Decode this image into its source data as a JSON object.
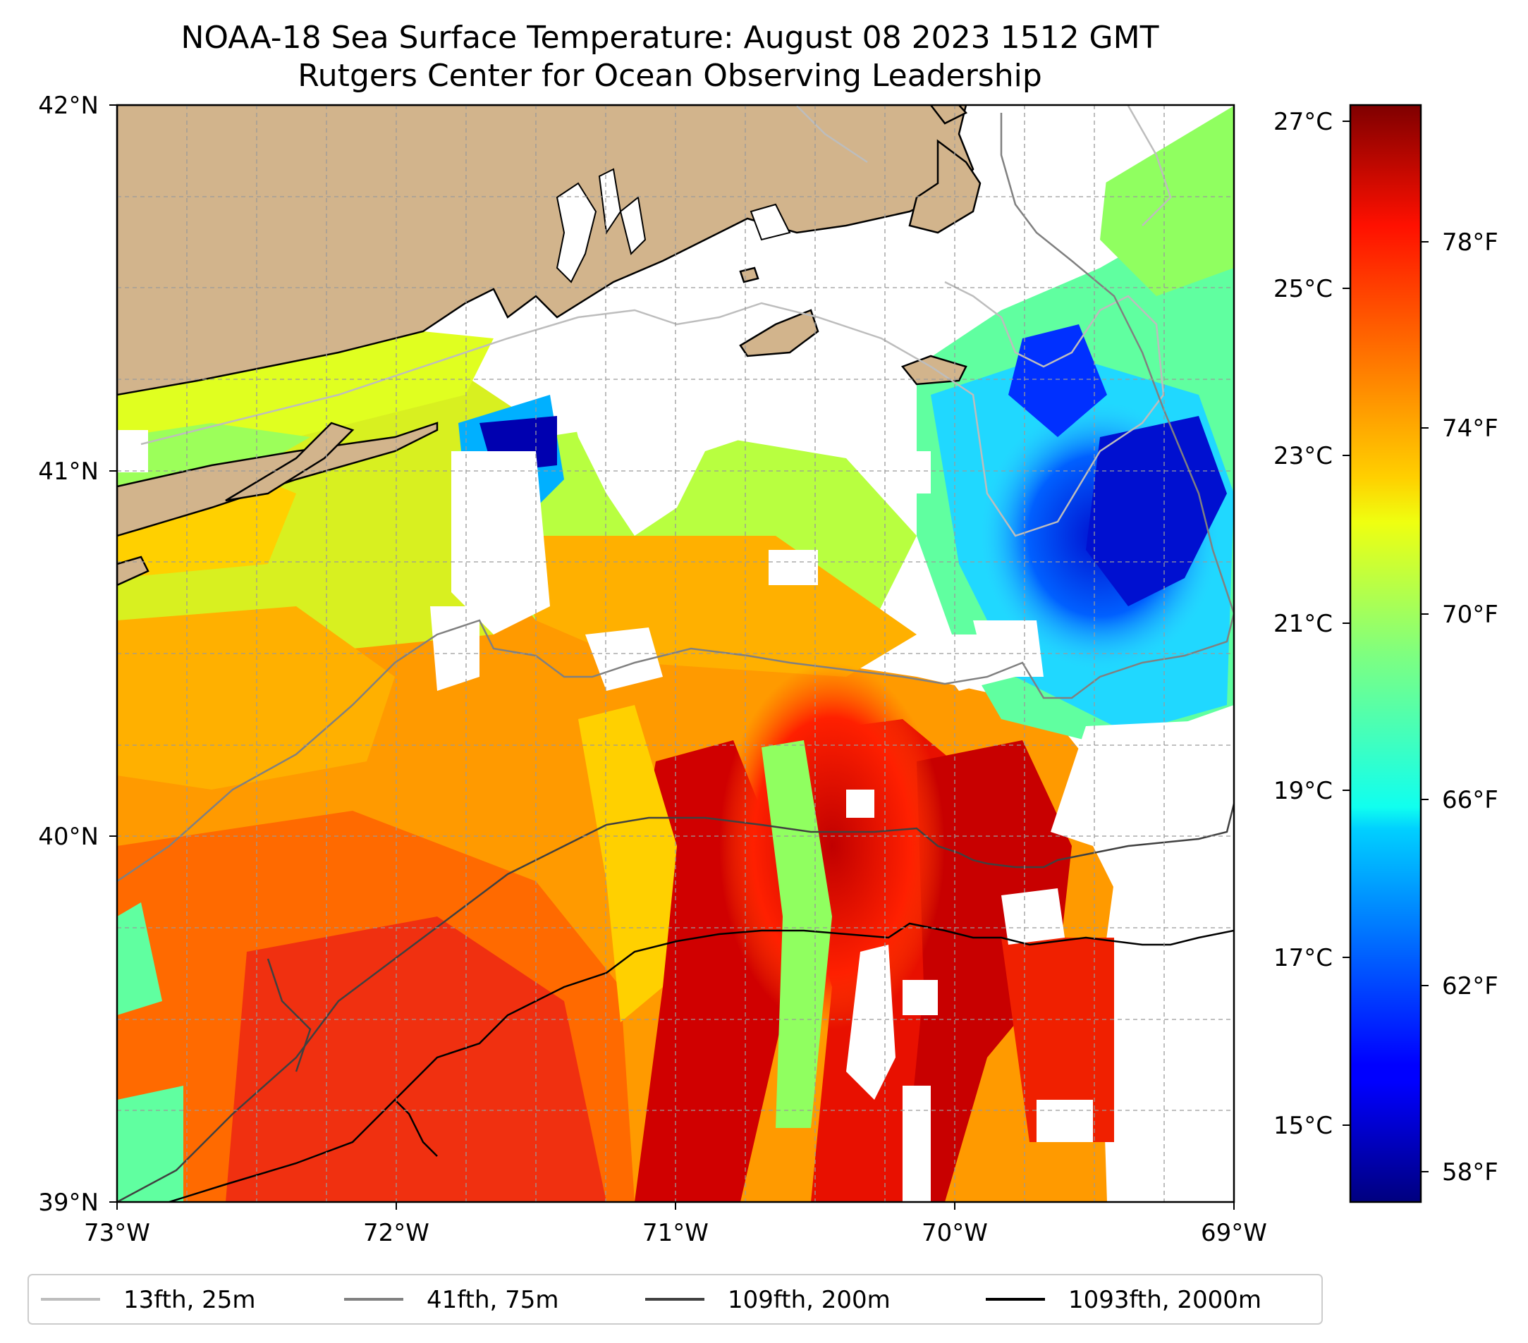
{
  "title": "NOAA-18 Sea Surface Temperature: August 08 2023 1512 GMT",
  "subtitle": "Rutgers Center for Ocean Observing Leadership",
  "map": {
    "lon_range": [
      -73,
      -69
    ],
    "lat_range": [
      39,
      42
    ],
    "lat_ticks": [
      "42°N",
      "41°N",
      "40°N",
      "39°N"
    ],
    "lon_ticks": [
      "73°W",
      "72°W",
      "71°W",
      "70°W",
      "69°W"
    ],
    "gridlines": "dashed",
    "land_color": "#d2b48c",
    "no_data_color": "#ffffff"
  },
  "colorbar": {
    "cmap": "jet",
    "range_c": [
      14.1,
      27.2
    ],
    "celsius_ticks": [
      "27°C",
      "25°C",
      "23°C",
      "21°C",
      "19°C",
      "17°C",
      "15°C"
    ],
    "fahrenheit_ticks": [
      "78°F",
      "74°F",
      "70°F",
      "66°F",
      "62°F",
      "58°F"
    ]
  },
  "legend": {
    "placement": "bottom",
    "items": [
      {
        "label": "13fth, 25m",
        "color": "#bdbdbd"
      },
      {
        "label": "41fth, 75m",
        "color": "#808080"
      },
      {
        "label": "109fth, 200m",
        "color": "#404040"
      },
      {
        "label": "1093fth, 2000m",
        "color": "#000000"
      }
    ]
  }
}
